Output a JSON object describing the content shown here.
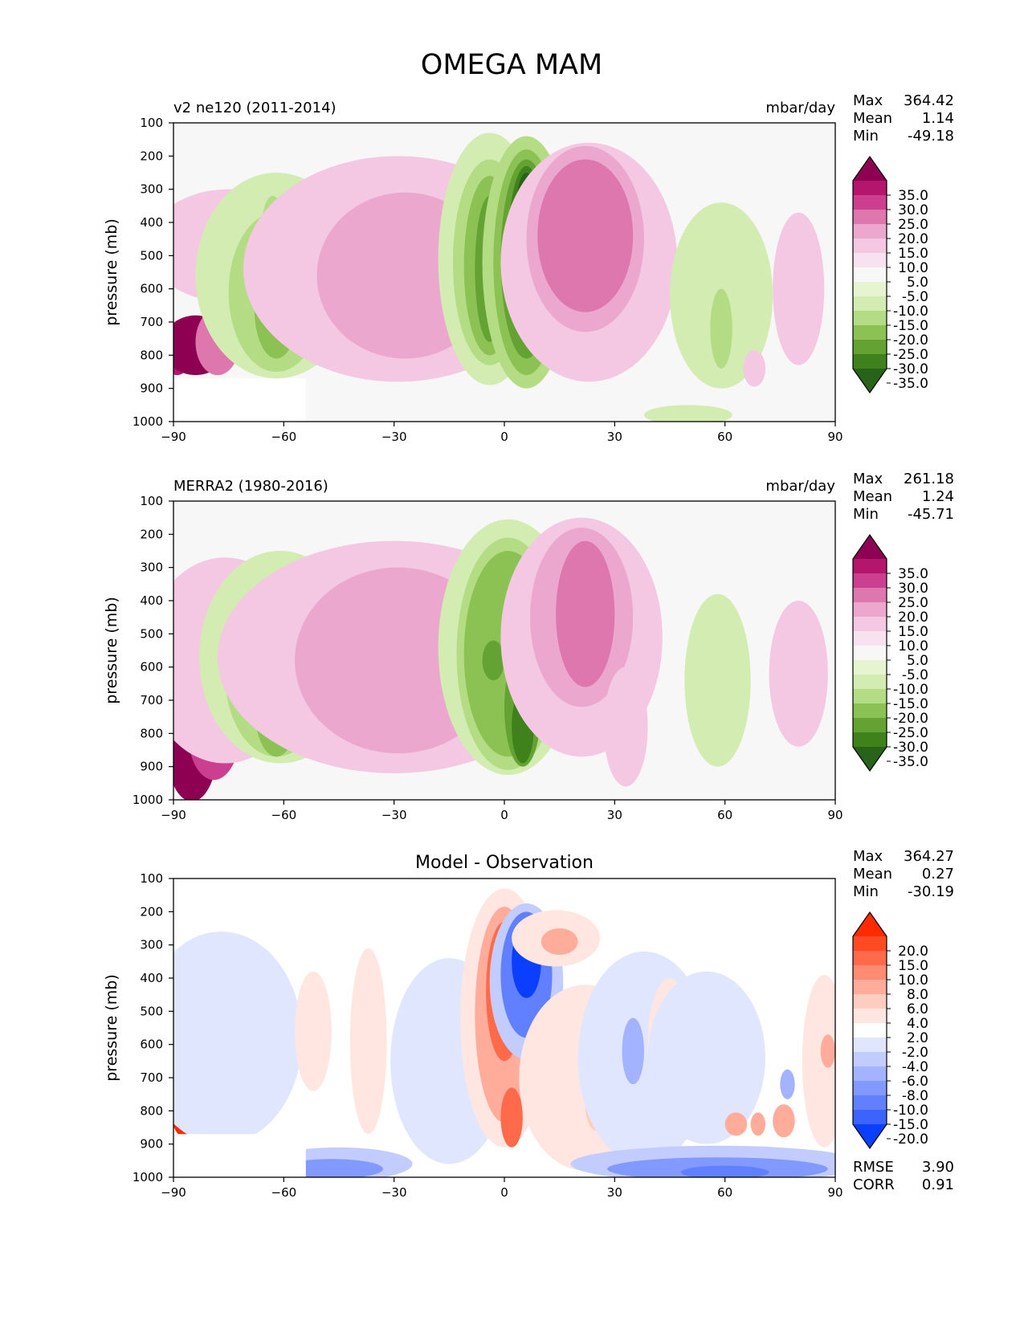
{
  "title": "OMEGA MAM",
  "chart_data": [
    {
      "type": "heatmap",
      "title": "v2 ne120 (2011-2014)",
      "units": "mbar/day",
      "ylabel": "pressure (mb)",
      "xlabel": "",
      "xlim": [
        -90,
        90
      ],
      "ylim": [
        1000,
        100
      ],
      "x_ticks": [
        "−90",
        "−60",
        "−30",
        "0",
        "30",
        "60",
        "90"
      ],
      "y_ticks": [
        "100",
        "200",
        "300",
        "400",
        "500",
        "600",
        "700",
        "800",
        "900",
        "1000"
      ],
      "stats": {
        "max_label": "Max",
        "max": "364.42",
        "mean_label": "Mean",
        "mean": "1.14",
        "min_label": "Min",
        "min": "-49.18"
      },
      "colorbar": {
        "labels": [
          "35.0",
          "30.0",
          "25.0",
          "20.0",
          "15.0",
          "10.0",
          "5.0",
          "-5.0",
          "-10.0",
          "-15.0",
          "-20.0",
          "-25.0",
          "-30.0",
          "-35.0"
        ],
        "colors": [
          "#8e0152",
          "#b4166e",
          "#cc3e8f",
          "#de77ae",
          "#eca7cf",
          "#f4c7e2",
          "#f9e2ef",
          "#f7f7f7",
          "#e6f5d0",
          "#d2ecb2",
          "#b4dc84",
          "#8cc253",
          "#63a233",
          "#3f821c",
          "#276419"
        ]
      },
      "features": [
        {
          "x": -89,
          "p": 790,
          "w": 4,
          "h": 140,
          "v": 30
        },
        {
          "x": -84,
          "p": 770,
          "w": 9,
          "h": 180,
          "v": 35
        },
        {
          "x": -78,
          "p": 760,
          "w": 6,
          "h": 200,
          "v": 20
        },
        {
          "x": -74,
          "p": 720,
          "w": 4,
          "h": 170,
          "v": 15
        },
        {
          "x": -75,
          "p": 470,
          "w": 22,
          "h": 340,
          "v": 10
        },
        {
          "x": -62,
          "p": 560,
          "w": 22,
          "h": 620,
          "v": -10
        },
        {
          "x": -62,
          "p": 610,
          "w": 13,
          "h": 480,
          "v": -15
        },
        {
          "x": -62,
          "p": 660,
          "w": 6,
          "h": 300,
          "v": -20
        },
        {
          "x": -63,
          "p": 420,
          "w": 3,
          "h": 200,
          "v": -15
        },
        {
          "x": -29,
          "p": 540,
          "w": 42,
          "h": 680,
          "v": 10
        },
        {
          "x": -27,
          "p": 560,
          "w": 24,
          "h": 500,
          "v": 15
        },
        {
          "x": -4,
          "p": 510,
          "w": 14,
          "h": 760,
          "v": -10
        },
        {
          "x": -4,
          "p": 520,
          "w": 10,
          "h": 620,
          "v": -15
        },
        {
          "x": -4,
          "p": 530,
          "w": 7,
          "h": 540,
          "v": -20
        },
        {
          "x": -4,
          "p": 540,
          "w": 4,
          "h": 440,
          "v": -25
        },
        {
          "x": 6,
          "p": 520,
          "w": 12,
          "h": 760,
          "v": -15
        },
        {
          "x": 6,
          "p": 520,
          "w": 9,
          "h": 680,
          "v": -20
        },
        {
          "x": 6,
          "p": 510,
          "w": 7,
          "h": 600,
          "v": -25
        },
        {
          "x": 6,
          "p": 480,
          "w": 5,
          "h": 500,
          "v": -30
        },
        {
          "x": 6,
          "p": 380,
          "w": 3,
          "h": 260,
          "v": -35
        },
        {
          "x": 23,
          "p": 520,
          "w": 24,
          "h": 720,
          "v": 10
        },
        {
          "x": 22,
          "p": 450,
          "w": 16,
          "h": 560,
          "v": 15
        },
        {
          "x": 22,
          "p": 440,
          "w": 13,
          "h": 460,
          "v": 20
        },
        {
          "x": 59,
          "p": 620,
          "w": 14,
          "h": 560,
          "v": -10
        },
        {
          "x": 59,
          "p": 720,
          "w": 3,
          "h": 240,
          "v": -15
        },
        {
          "x": 50,
          "p": 980,
          "w": 12,
          "h": 60,
          "v": -10
        },
        {
          "x": 80,
          "p": 600,
          "w": 7,
          "h": 460,
          "v": 10
        },
        {
          "x": 68,
          "p": 840,
          "w": 3,
          "h": 110,
          "v": 10
        }
      ],
      "mask": {
        "x0": -90,
        "x1": -54,
        "p0": 870
      }
    },
    {
      "type": "heatmap",
      "title": "MERRA2 (1980-2016)",
      "units": "mbar/day",
      "ylabel": "pressure (mb)",
      "xlabel": "",
      "xlim": [
        -90,
        90
      ],
      "ylim": [
        1000,
        100
      ],
      "x_ticks": [
        "−90",
        "−60",
        "−30",
        "0",
        "30",
        "60",
        "90"
      ],
      "y_ticks": [
        "100",
        "200",
        "300",
        "400",
        "500",
        "600",
        "700",
        "800",
        "900",
        "1000"
      ],
      "stats": {
        "max_label": "Max",
        "max": "261.18",
        "mean_label": "Mean",
        "mean": "1.24",
        "min_label": "Min",
        "min": "-45.71"
      },
      "colorbar": {
        "labels": [
          "35.0",
          "30.0",
          "25.0",
          "20.0",
          "15.0",
          "10.0",
          "5.0",
          "-5.0",
          "-10.0",
          "-15.0",
          "-20.0",
          "-25.0",
          "-30.0",
          "-35.0"
        ],
        "colors": [
          "#8e0152",
          "#b4166e",
          "#cc3e8f",
          "#de77ae",
          "#eca7cf",
          "#f4c7e2",
          "#f9e2ef",
          "#f7f7f7",
          "#e6f5d0",
          "#d2ecb2",
          "#b4dc84",
          "#8cc253",
          "#63a233",
          "#3f821c",
          "#276419"
        ]
      },
      "features": [
        {
          "x": -85,
          "p": 840,
          "w": 7,
          "h": 330,
          "v": 35
        },
        {
          "x": -79,
          "p": 800,
          "w": 7,
          "h": 280,
          "v": 25
        },
        {
          "x": -74,
          "p": 760,
          "w": 5,
          "h": 240,
          "v": 15
        },
        {
          "x": -70,
          "p": 760,
          "w": 3,
          "h": 80,
          "v": 25
        },
        {
          "x": -76,
          "p": 580,
          "w": 22,
          "h": 620,
          "v": 10
        },
        {
          "x": -61,
          "p": 570,
          "w": 22,
          "h": 640,
          "v": -10
        },
        {
          "x": -62,
          "p": 620,
          "w": 14,
          "h": 500,
          "v": -15
        },
        {
          "x": -62,
          "p": 720,
          "w": 6,
          "h": 300,
          "v": -20
        },
        {
          "x": -30,
          "p": 570,
          "w": 48,
          "h": 700,
          "v": 10
        },
        {
          "x": -29,
          "p": 580,
          "w": 28,
          "h": 560,
          "v": 15
        },
        {
          "x": 1,
          "p": 540,
          "w": 19,
          "h": 770,
          "v": -10
        },
        {
          "x": 1,
          "p": 560,
          "w": 14,
          "h": 700,
          "v": -15
        },
        {
          "x": 1,
          "p": 560,
          "w": 12,
          "h": 620,
          "v": -20
        },
        {
          "x": 5,
          "p": 720,
          "w": 5,
          "h": 360,
          "v": -25
        },
        {
          "x": 5,
          "p": 780,
          "w": 3,
          "h": 220,
          "v": -30
        },
        {
          "x": -3,
          "p": 580,
          "w": 3,
          "h": 120,
          "v": -25
        },
        {
          "x": 21,
          "p": 510,
          "w": 22,
          "h": 720,
          "v": 10
        },
        {
          "x": 21,
          "p": 450,
          "w": 14,
          "h": 540,
          "v": 15
        },
        {
          "x": 22,
          "p": 440,
          "w": 8,
          "h": 440,
          "v": 20
        },
        {
          "x": 33,
          "p": 780,
          "w": 6,
          "h": 360,
          "v": 10
        },
        {
          "x": 58,
          "p": 640,
          "w": 9,
          "h": 520,
          "v": -10
        },
        {
          "x": 80,
          "p": 620,
          "w": 8,
          "h": 440,
          "v": 10
        }
      ],
      "mask": null
    },
    {
      "type": "heatmap",
      "title": "Model - Observation",
      "units": "",
      "ylabel": "pressure (mb)",
      "xlabel": "",
      "xlim": [
        -90,
        90
      ],
      "ylim": [
        1000,
        100
      ],
      "x_ticks": [
        "−90",
        "−60",
        "−30",
        "0",
        "30",
        "60",
        "90"
      ],
      "y_ticks": [
        "100",
        "200",
        "300",
        "400",
        "500",
        "600",
        "700",
        "800",
        "900",
        "1000"
      ],
      "stats": {
        "max_label": "Max",
        "max": "364.27",
        "mean_label": "Mean",
        "mean": "0.27",
        "min_label": "Min",
        "min": "-30.19"
      },
      "extra_stats": {
        "rmse_label": "RMSE",
        "rmse": "3.90",
        "corr_label": "CORR",
        "corr": "0.91"
      },
      "colorbar": {
        "labels": [
          "20.0",
          "15.0",
          "10.0",
          "8.0",
          "6.0",
          "4.0",
          "2.0",
          "-2.0",
          "-4.0",
          "-6.0",
          "-8.0",
          "-10.0",
          "-15.0",
          "-20.0"
        ],
        "colors": [
          "#ff2a00",
          "#ff4a24",
          "#ff6a4a",
          "#ff8c72",
          "#ffad9a",
          "#ffcdc0",
          "#ffe6e0",
          "#ffffff",
          "#e1e6ff",
          "#c2ccff",
          "#a3b3ff",
          "#8299ff",
          "#6180ff",
          "#3d63ff",
          "#0a3fff"
        ]
      },
      "features": [
        {
          "x": -87,
          "p": 780,
          "w": 4,
          "h": 200,
          "v": 20
        },
        {
          "x": -80,
          "p": 830,
          "w": 4,
          "h": 110,
          "v": 10
        },
        {
          "x": -72,
          "p": 820,
          "w": 3,
          "h": 110,
          "v": 15
        },
        {
          "x": -83,
          "p": 690,
          "w": 5,
          "h": 340,
          "v": -10
        },
        {
          "x": -76,
          "p": 660,
          "w": 4,
          "h": 320,
          "v": -10
        },
        {
          "x": -70,
          "p": 740,
          "w": 4,
          "h": 200,
          "v": -10
        },
        {
          "x": -77,
          "p": 580,
          "w": 22,
          "h": 640,
          "v": -2
        },
        {
          "x": -66,
          "p": 570,
          "w": 7,
          "h": 520,
          "v": -2
        },
        {
          "x": -52,
          "p": 560,
          "w": 5,
          "h": 360,
          "v": 2
        },
        {
          "x": -37,
          "p": 590,
          "w": 5,
          "h": 560,
          "v": 2
        },
        {
          "x": -45,
          "p": 960,
          "w": 20,
          "h": 100,
          "v": -4
        },
        {
          "x": -47,
          "p": 975,
          "w": 14,
          "h": 60,
          "v": -8
        },
        {
          "x": -15,
          "p": 650,
          "w": 16,
          "h": 620,
          "v": -2
        },
        {
          "x": 0,
          "p": 520,
          "w": 12,
          "h": 780,
          "v": 2
        },
        {
          "x": 0,
          "p": 510,
          "w": 8,
          "h": 650,
          "v": 6
        },
        {
          "x": 0,
          "p": 440,
          "w": 5,
          "h": 420,
          "v": 10
        },
        {
          "x": 2,
          "p": 820,
          "w": 3,
          "h": 180,
          "v": 10
        },
        {
          "x": 6,
          "p": 410,
          "w": 10,
          "h": 470,
          "v": -4
        },
        {
          "x": 6,
          "p": 390,
          "w": 7,
          "h": 380,
          "v": -10
        },
        {
          "x": 6,
          "p": 350,
          "w": 4,
          "h": 220,
          "v": -20
        },
        {
          "x": 14,
          "p": 280,
          "w": 12,
          "h": 170,
          "v": 2
        },
        {
          "x": 15,
          "p": 290,
          "w": 5,
          "h": 80,
          "v": 6
        },
        {
          "x": 22,
          "p": 700,
          "w": 18,
          "h": 560,
          "v": 2
        },
        {
          "x": 25,
          "p": 780,
          "w": 3,
          "h": 160,
          "v": 4
        },
        {
          "x": 38,
          "p": 640,
          "w": 18,
          "h": 640,
          "v": -2
        },
        {
          "x": 35,
          "p": 620,
          "w": 3,
          "h": 200,
          "v": -6
        },
        {
          "x": 45,
          "p": 600,
          "w": 6,
          "h": 400,
          "v": 2
        },
        {
          "x": 55,
          "p": 640,
          "w": 16,
          "h": 520,
          "v": -2
        },
        {
          "x": 58,
          "p": 960,
          "w": 40,
          "h": 110,
          "v": -4
        },
        {
          "x": 58,
          "p": 975,
          "w": 30,
          "h": 70,
          "v": -8
        },
        {
          "x": 60,
          "p": 985,
          "w": 12,
          "h": 40,
          "v": -10
        },
        {
          "x": 63,
          "p": 840,
          "w": 3,
          "h": 70,
          "v": 6
        },
        {
          "x": 69,
          "p": 840,
          "w": 2,
          "h": 70,
          "v": 6
        },
        {
          "x": 76,
          "p": 830,
          "w": 3,
          "h": 100,
          "v": 6
        },
        {
          "x": 77,
          "p": 720,
          "w": 2,
          "h": 90,
          "v": -6
        },
        {
          "x": 87,
          "p": 650,
          "w": 6,
          "h": 520,
          "v": 2
        },
        {
          "x": 88,
          "p": 620,
          "w": 2,
          "h": 100,
          "v": 6
        }
      ],
      "mask": {
        "x0": -90,
        "x1": -54,
        "p0": 870
      }
    }
  ]
}
